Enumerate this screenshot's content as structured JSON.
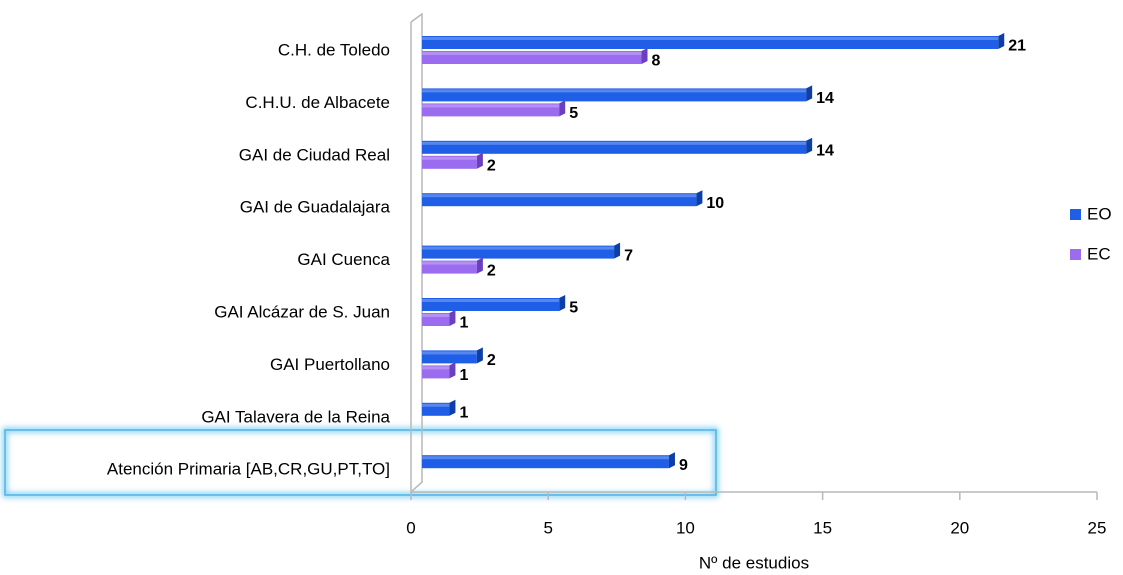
{
  "chart_data": {
    "type": "bar",
    "orientation": "horizontal",
    "categories": [
      "C.H. de Toledo",
      "C.H.U. de Albacete",
      "GAI de Ciudad Real",
      "GAI de Guadalajara",
      "GAI Cuenca",
      "GAI Alcázar de S. Juan",
      "GAI Puertollano",
      "GAI Talavera de la Reina",
      "Atención Primaria [AB,CR,GU,PT,TO]"
    ],
    "series": [
      {
        "name": "EO",
        "color": "#1f5fe8",
        "values": [
          21,
          14,
          14,
          10,
          7,
          5,
          2,
          1,
          9
        ]
      },
      {
        "name": "EC",
        "color": "#9b6bf0",
        "values": [
          8,
          5,
          2,
          null,
          2,
          1,
          1,
          null,
          null
        ]
      }
    ],
    "xlabel": "Nº de estudios",
    "xlim": [
      0,
      25
    ],
    "xticks": [
      0,
      5,
      10,
      15,
      20,
      25
    ],
    "legend": "right"
  }
}
